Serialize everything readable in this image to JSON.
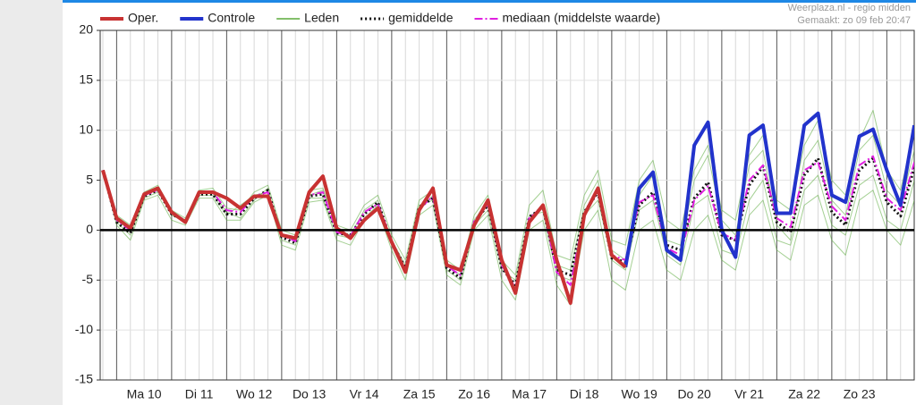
{
  "chart_data": {
    "type": "line",
    "source": "Weerplaza.nl - regio midden",
    "created": "Gemaakt: zo 09 feb 20:47",
    "categories": [
      null,
      null,
      null,
      "Ma 10",
      null,
      null,
      null,
      "Di 11",
      null,
      null,
      null,
      "Wo 12",
      null,
      null,
      null,
      "Do 13",
      null,
      null,
      null,
      "Vr 14",
      null,
      null,
      null,
      "Za 15",
      null,
      null,
      null,
      "Zo 16",
      null,
      null,
      null,
      "Ma 17",
      null,
      null,
      null,
      "Di 18",
      null,
      null,
      null,
      "Wo 19",
      null,
      null,
      null,
      "Do 20",
      null,
      null,
      null,
      "Vr 21",
      null,
      null,
      null,
      "Za 22",
      null,
      null,
      null,
      "Zo 23",
      null,
      null,
      null,
      null
    ],
    "ylim": [
      -15,
      20
    ],
    "yticks": [
      -15,
      -10,
      -5,
      0,
      5,
      10,
      15,
      20
    ],
    "series": [
      {
        "name": "Oper.",
        "color": "#c83232",
        "line_width": 4,
        "dash": "solid",
        "values": [
          6,
          1.2,
          0.2,
          3.6,
          4.2,
          1.8,
          0.8,
          3.8,
          3.8,
          3.2,
          2.2,
          3.4,
          3.4,
          -0.5,
          -0.8,
          3.8,
          5.4,
          0.2,
          -0.8,
          1,
          2.2,
          -1.2,
          -4.2,
          2,
          4.2,
          -3.5,
          -4,
          0.5,
          3,
          -3,
          -6.3,
          0.8,
          2.5,
          -3,
          -7.3,
          1.5,
          4.2,
          -2.5,
          -3.7,
          null,
          null,
          null,
          null,
          null,
          null,
          null,
          null,
          null,
          null,
          null,
          null,
          null,
          null,
          null,
          null,
          null,
          null,
          null,
          null,
          null
        ]
      },
      {
        "name": "Controle",
        "color": "#2233cc",
        "line_width": 4,
        "dash": "solid",
        "values": [
          null,
          null,
          null,
          null,
          null,
          null,
          null,
          null,
          null,
          null,
          null,
          null,
          null,
          null,
          null,
          null,
          null,
          null,
          null,
          null,
          null,
          null,
          null,
          null,
          null,
          null,
          null,
          null,
          null,
          null,
          null,
          null,
          null,
          null,
          null,
          null,
          null,
          null,
          -3.7,
          4.2,
          5.8,
          -2,
          -3,
          8.5,
          10.8,
          0,
          -2.7,
          9.5,
          10.5,
          1.7,
          1.7,
          10.5,
          11.7,
          3.5,
          2.8,
          9.4,
          10.1,
          6,
          2.5,
          10.5
        ]
      },
      {
        "name": "Leden",
        "color": "#5aaa3a",
        "line_width": 1,
        "dash": "solid",
        "runs": [
          [
            6,
            1.5,
            0.5,
            3.8,
            4.5,
            2,
            1.2,
            4,
            4.2,
            2.2,
            2,
            3.8,
            4.5,
            0,
            -0.5,
            4,
            4.2,
            0.5,
            0,
            2.5,
            3.5,
            -0.5,
            -3,
            3,
            4,
            -3,
            -4,
            1.5,
            3.5,
            -3,
            -4.5,
            2.5,
            4,
            -2.5,
            -3,
            3.5,
            6,
            -1,
            -1.5,
            5,
            7,
            1,
            0,
            6,
            8.5,
            2,
            1,
            7.5,
            9.5,
            3,
            2,
            8.5,
            11,
            5,
            3.5,
            9,
            12,
            6,
            4,
            10
          ],
          [
            6,
            0.5,
            -1,
            3,
            3.5,
            1,
            0.5,
            3.2,
            3.2,
            1,
            1,
            2.8,
            3.5,
            -1.5,
            -2,
            2.8,
            3,
            -1,
            -1.5,
            1,
            2,
            -2,
            -5,
            1.5,
            2.5,
            -4.5,
            -5.5,
            0,
            1.5,
            -5,
            -7,
            0,
            1,
            -5.5,
            -7.5,
            0,
            2,
            -5,
            -6,
            0,
            1,
            -4,
            -5,
            0,
            1.5,
            -3,
            -4,
            1.5,
            3,
            -2,
            -3,
            2.5,
            3.5,
            -1,
            -2.5,
            3,
            4,
            0,
            -1.5,
            3
          ],
          [
            6,
            1,
            0,
            3.5,
            4.2,
            1.5,
            0.8,
            3.5,
            3.5,
            1.5,
            2.5,
            3.5,
            3.8,
            -0.5,
            -1,
            3.5,
            4,
            0,
            -0.5,
            2,
            3,
            -1.5,
            -4,
            2,
            3.5,
            -3.5,
            -4.5,
            1,
            3,
            -3.5,
            -6,
            1,
            2.5,
            -3.5,
            -4,
            2.5,
            5,
            -2,
            -3,
            3.5,
            5.5,
            -1,
            -1.5,
            5,
            7.5,
            1,
            -0.5,
            6.5,
            8,
            0.5,
            -1,
            7,
            9,
            3,
            1.5,
            8,
            9.5,
            4,
            2.5,
            8
          ],
          [
            6,
            0.8,
            -0.5,
            3.2,
            3.8,
            1.8,
            1,
            3.8,
            3.8,
            1.8,
            1.2,
            3,
            4.2,
            -1,
            -1.5,
            3.2,
            3.2,
            -0.5,
            -0.8,
            1.2,
            2.5,
            -1,
            -3.5,
            2.5,
            3,
            -4,
            -5,
            0.5,
            2,
            -4,
            -5,
            1.5,
            1.8,
            -4.5,
            -5,
            1.5,
            3,
            -3,
            -4,
            2,
            3,
            -2.5,
            -3.5,
            2.5,
            3.5,
            -2,
            -2.5,
            3,
            5,
            -1,
            -1.5,
            4,
            5.5,
            0.5,
            -0.5,
            4.5,
            5.5,
            1,
            0,
            5
          ]
        ]
      },
      {
        "name": "gemiddelde",
        "color": "#111111",
        "line_width": 3,
        "dash": "dotted",
        "values": [
          6,
          0.8,
          -0.3,
          3.4,
          4,
          1.6,
          0.9,
          3.6,
          3.6,
          1.6,
          1.6,
          3.2,
          4,
          -0.7,
          -1.3,
          3.4,
          3.6,
          -0.3,
          -0.5,
          1.6,
          2.8,
          -1.2,
          -3.8,
          2.3,
          3.2,
          -3.8,
          -4.8,
          0.8,
          2.5,
          -3.8,
          -5.5,
          1.3,
          2.3,
          -4,
          -4.5,
          1.8,
          3.8,
          -2.8,
          -3.2,
          2.5,
          3.8,
          -1.5,
          -2,
          3.2,
          4.8,
          -0.5,
          -1,
          4.5,
          6.4,
          0.8,
          -0.2,
          5.5,
          7.2,
          1.8,
          0.5,
          6,
          7.2,
          2.8,
          1.4,
          6.3
        ]
      },
      {
        "name": "mediaan (middelste waarde)",
        "color": "#e020e0",
        "line_width": 2,
        "dash": "dashdot",
        "values": [
          6,
          1,
          0,
          3.5,
          4,
          1.7,
          1,
          3.7,
          3.8,
          2,
          1.8,
          3.4,
          3.8,
          -0.5,
          -1.1,
          3.5,
          3.8,
          -0.2,
          -0.6,
          1.8,
          2.6,
          -1,
          -4,
          2.1,
          3.4,
          -3.6,
          -4.5,
          0.9,
          2.6,
          -3.5,
          -5.8,
          1.2,
          2.4,
          -4.2,
          -5.5,
          1.6,
          4,
          -2.5,
          -3,
          2.8,
          3.5,
          -1.8,
          -2.5,
          3,
          4.4,
          -0.3,
          -1,
          5,
          6.5,
          1.2,
          0.3,
          6,
          6.8,
          2.4,
          1,
          6.5,
          7.4,
          3.2,
          2,
          6.8
        ]
      }
    ],
    "zero_line": true,
    "grid": true
  }
}
